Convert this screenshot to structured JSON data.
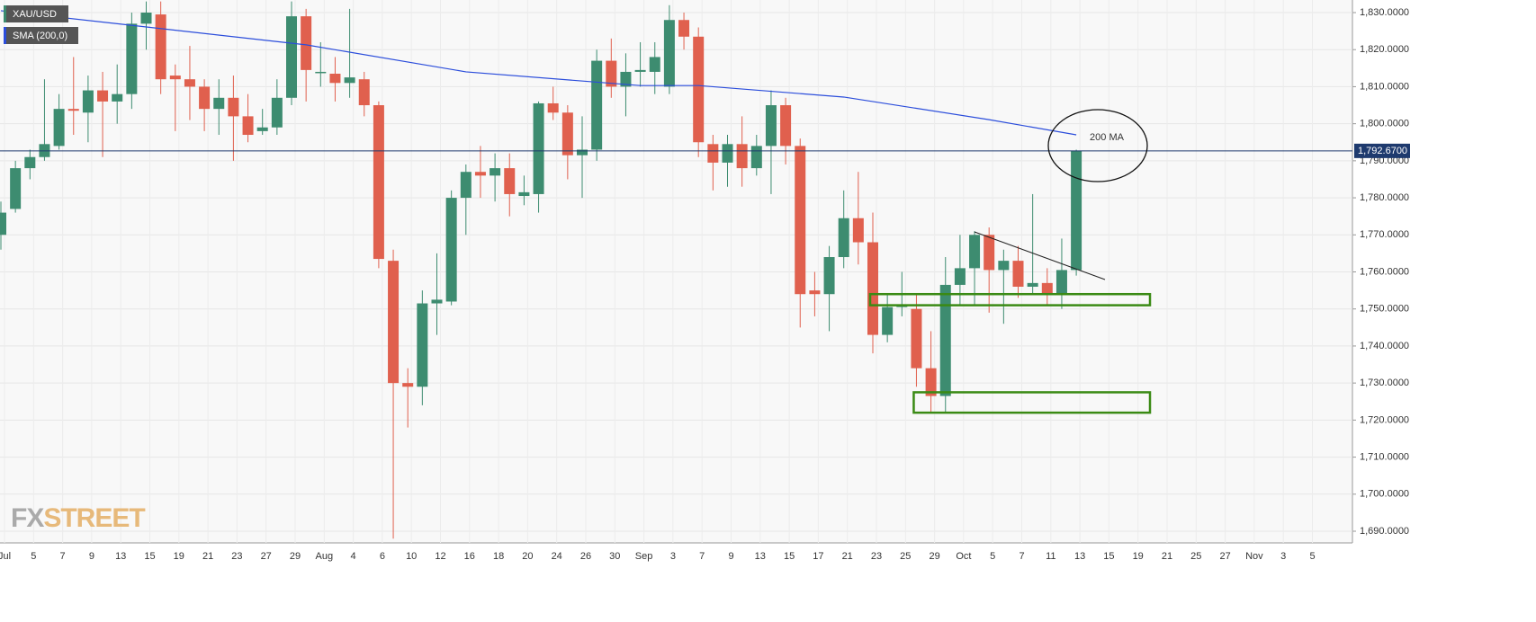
{
  "chart_data": {
    "type": "candlestick",
    "legend": [
      "XAU/USD",
      "SMA (200,0)"
    ],
    "watermark": [
      "FX",
      "STREET"
    ],
    "annotation": "200 MA",
    "up_color": "#3d8c70",
    "down_color": "#e0604e",
    "sma_color": "#2b4ddb",
    "zone_color": "#3a8a14",
    "ylim": [
      1687,
      1833
    ],
    "yticks": [
      {
        "value": 1690,
        "label": "1,690.0000"
      },
      {
        "value": 1700,
        "label": "1,700.0000"
      },
      {
        "value": 1710,
        "label": "1,710.0000"
      },
      {
        "value": 1720,
        "label": "1,720.0000"
      },
      {
        "value": 1730,
        "label": "1,730.0000"
      },
      {
        "value": 1740,
        "label": "1,740.0000"
      },
      {
        "value": 1750,
        "label": "1,750.0000"
      },
      {
        "value": 1760,
        "label": "1,760.0000"
      },
      {
        "value": 1770,
        "label": "1,770.0000"
      },
      {
        "value": 1780,
        "label": "1,780.0000"
      },
      {
        "value": 1790,
        "label": "1,790.0000"
      },
      {
        "value": 1800,
        "label": "1,800.0000"
      },
      {
        "value": 1810,
        "label": "1,810.0000"
      },
      {
        "value": 1820,
        "label": "1,820.0000"
      },
      {
        "value": 1830,
        "label": "1,830.0000"
      }
    ],
    "xlabels": [
      "Jul",
      "5",
      "7",
      "9",
      "13",
      "15",
      "19",
      "21",
      "23",
      "27",
      "29",
      "Aug",
      "4",
      "6",
      "10",
      "12",
      "16",
      "18",
      "20",
      "24",
      "26",
      "30",
      "Sep",
      "3",
      "7",
      "9",
      "13",
      "15",
      "17",
      "21",
      "23",
      "25",
      "29",
      "Oct",
      "5",
      "7",
      "11",
      "13",
      "15",
      "19",
      "21",
      "25",
      "27",
      "Nov",
      "3",
      "5"
    ],
    "last_price": {
      "value": 1792.67,
      "label": "1,792.6700"
    },
    "open": [
      1770,
      1777,
      1788,
      1791,
      1794,
      1804,
      1803,
      1809,
      1806,
      1808,
      1827,
      1829.5,
      1813,
      1812,
      1810,
      1804,
      1807,
      1802,
      1798,
      1799,
      1807,
      1829,
      1814,
      1813.5,
      1811,
      1812,
      1805,
      1763,
      1730,
      1729,
      1751.5,
      1752,
      1780,
      1787,
      1786,
      1788,
      1780.5,
      1781,
      1805.5,
      1803,
      1791.5,
      1793,
      1817,
      1810,
      1814,
      1814,
      1810,
      1828,
      1823.5,
      1794.5,
      1789.5,
      1794.5,
      1788,
      1794,
      1805,
      1794,
      1755,
      1754,
      1764,
      1774.5,
      1768,
      1743,
      1750.5,
      1750,
      1734,
      1726.5,
      1756.5,
      1761,
      1770,
      1760.5,
      1763,
      1756,
      1757,
      1754,
      1760.5
    ],
    "high": [
      1779,
      1790,
      1793,
      1812,
      1808,
      1818,
      1813,
      1814,
      1816,
      1830,
      1833,
      1833,
      1816,
      1821,
      1812,
      1812,
      1813,
      1808,
      1804,
      1812,
      1833,
      1831,
      1822,
      1818,
      1831,
      1814,
      1806,
      1766,
      1734,
      1755,
      1765,
      1782,
      1789,
      1794,
      1792,
      1792,
      1786,
      1806,
      1810,
      1805,
      1802,
      1820,
      1823,
      1819,
      1822,
      1822,
      1832,
      1830,
      1826,
      1797,
      1797,
      1802,
      1797,
      1809,
      1807,
      1796,
      1760,
      1767,
      1782,
      1787,
      1776,
      1754,
      1760,
      1754,
      1744,
      1764,
      1770,
      1771,
      1772,
      1766,
      1767,
      1781,
      1761,
      1769,
      1793
    ],
    "low": [
      1766,
      1776,
      1785,
      1790,
      1793,
      1797,
      1795,
      1791,
      1800,
      1804,
      1820,
      1808,
      1798,
      1801,
      1798,
      1797,
      1790,
      1795,
      1797,
      1797,
      1805,
      1806,
      1810,
      1806,
      1807,
      1802,
      1761,
      1688,
      1718,
      1724,
      1743,
      1751,
      1770,
      1780,
      1779,
      1775,
      1778,
      1776,
      1801,
      1785,
      1780,
      1790,
      1807,
      1802,
      1810,
      1808,
      1808,
      1820,
      1791,
      1782,
      1783,
      1783,
      1786,
      1781,
      1789,
      1745,
      1748,
      1744,
      1761,
      1762,
      1738,
      1741,
      1748,
      1729,
      1722,
      1722,
      1751,
      1751,
      1749,
      1746,
      1753,
      1754,
      1751,
      1750,
      1759
    ],
    "close": [
      1776,
      1788,
      1791,
      1794.5,
      1804,
      1803.5,
      1809,
      1806,
      1808,
      1827,
      1830,
      1812,
      1812,
      1810,
      1804,
      1807,
      1802,
      1797,
      1799,
      1807,
      1829,
      1814.5,
      1814,
      1811,
      1812.5,
      1805,
      1763.5,
      1730,
      1729,
      1751.5,
      1752.5,
      1780,
      1787,
      1786,
      1788,
      1781,
      1781.5,
      1805.5,
      1803,
      1791.5,
      1793,
      1817,
      1810,
      1814,
      1814.5,
      1818,
      1828,
      1823.5,
      1795,
      1789.5,
      1794.5,
      1788,
      1794,
      1805,
      1794,
      1754,
      1754,
      1764,
      1774.5,
      1768,
      1743,
      1750.5,
      1751,
      1734,
      1726.5,
      1756.5,
      1761,
      1770,
      1760.5,
      1763,
      1756,
      1757,
      1754,
      1760.5,
      1792.67
    ],
    "sma": {
      "name": "SMA (200,0)",
      "x": [
        0,
        21,
        32,
        44,
        48,
        58,
        68,
        74
      ],
      "values": [
        1830.5,
        1821.3,
        1814,
        1810.3,
        1810.3,
        1807.2,
        1801.1,
        1797
      ]
    },
    "zones": [
      {
        "low": 1751,
        "high": 1754
      },
      {
        "low": 1722,
        "high": 1727.5
      }
    ]
  }
}
